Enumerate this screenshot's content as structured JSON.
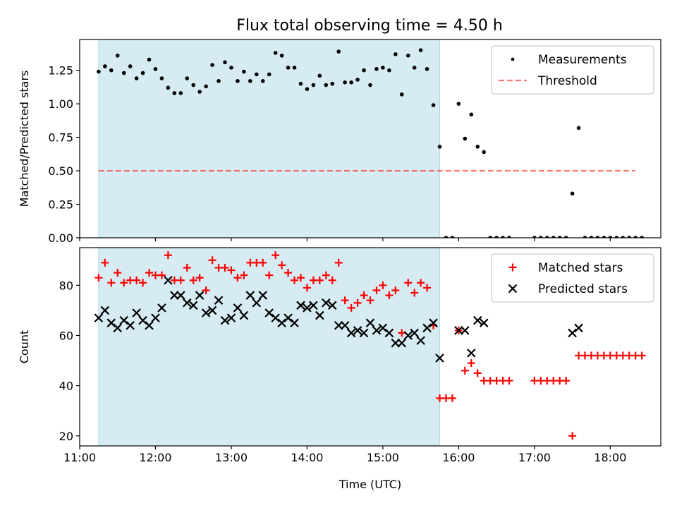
{
  "title": "Flux total observing time = 4.50 h",
  "colors": {
    "shade": "#add8e6",
    "threshold": "#ff0000",
    "measurement": "#000000",
    "matched": "#ff0000",
    "predicted": "#000000"
  },
  "chart_data": [
    {
      "type": "scatter",
      "title": "Flux total observing time = 4.50 h",
      "xlabel": "",
      "ylabel": "Matched/Predicted stars",
      "xlim": [
        "11:00",
        "18:40"
      ],
      "ylim": [
        0,
        1.48
      ],
      "xticks": [
        "11:00",
        "12:00",
        "13:00",
        "14:00",
        "15:00",
        "16:00",
        "17:00",
        "18:00"
      ],
      "show_xtick_labels": false,
      "yticks": [
        "0.00",
        "0.25",
        "0.50",
        "0.75",
        "1.00",
        "1.25"
      ],
      "ytick_values": [
        0,
        0.25,
        0.5,
        0.75,
        1.0,
        1.25
      ],
      "shaded_interval": [
        "11:15",
        "15:45"
      ],
      "legend": {
        "position": "top-right",
        "entries": [
          "Measurements",
          "Threshold"
        ]
      },
      "threshold": {
        "name": "Threshold",
        "value": 0.5,
        "x_range": [
          "11:15",
          "18:20"
        ]
      },
      "series": [
        {
          "name": "Measurements",
          "marker": "dot",
          "points": [
            [
              "11:15",
              1.24
            ],
            [
              "11:20",
              1.28
            ],
            [
              "11:25",
              1.25
            ],
            [
              "11:30",
              1.36
            ],
            [
              "11:35",
              1.23
            ],
            [
              "11:40",
              1.28
            ],
            [
              "11:45",
              1.19
            ],
            [
              "11:50",
              1.23
            ],
            [
              "11:55",
              1.33
            ],
            [
              "12:00",
              1.26
            ],
            [
              "12:05",
              1.19
            ],
            [
              "12:10",
              1.12
            ],
            [
              "12:15",
              1.08
            ],
            [
              "12:20",
              1.08
            ],
            [
              "12:25",
              1.19
            ],
            [
              "12:30",
              1.14
            ],
            [
              "12:35",
              1.09
            ],
            [
              "12:40",
              1.13
            ],
            [
              "12:45",
              1.29
            ],
            [
              "12:50",
              1.17
            ],
            [
              "12:55",
              1.31
            ],
            [
              "13:00",
              1.27
            ],
            [
              "13:05",
              1.17
            ],
            [
              "13:10",
              1.24
            ],
            [
              "13:15",
              1.17
            ],
            [
              "13:20",
              1.22
            ],
            [
              "13:25",
              1.17
            ],
            [
              "13:30",
              1.22
            ],
            [
              "13:35",
              1.38
            ],
            [
              "13:40",
              1.36
            ],
            [
              "13:45",
              1.27
            ],
            [
              "13:50",
              1.27
            ],
            [
              "13:55",
              1.15
            ],
            [
              "14:00",
              1.11
            ],
            [
              "14:05",
              1.14
            ],
            [
              "14:10",
              1.21
            ],
            [
              "14:15",
              1.14
            ],
            [
              "14:20",
              1.15
            ],
            [
              "14:25",
              1.39
            ],
            [
              "14:30",
              1.16
            ],
            [
              "14:35",
              1.16
            ],
            [
              "14:40",
              1.18
            ],
            [
              "14:45",
              1.25
            ],
            [
              "14:50",
              1.14
            ],
            [
              "14:55",
              1.26
            ],
            [
              "15:00",
              1.27
            ],
            [
              "15:05",
              1.25
            ],
            [
              "15:10",
              1.37
            ],
            [
              "15:15",
              1.07
            ],
            [
              "15:20",
              1.36
            ],
            [
              "15:25",
              1.27
            ],
            [
              "15:30",
              1.4
            ],
            [
              "15:35",
              1.26
            ],
            [
              "15:40",
              0.99
            ],
            [
              "15:45",
              0.68
            ],
            [
              "15:50",
              0.0
            ],
            [
              "15:55",
              0.0
            ],
            [
              "16:00",
              1.0
            ],
            [
              "16:05",
              0.74
            ],
            [
              "16:10",
              0.92
            ],
            [
              "16:15",
              0.68
            ],
            [
              "16:20",
              0.64
            ],
            [
              "16:25",
              0.0
            ],
            [
              "16:30",
              0.0
            ],
            [
              "16:35",
              0.0
            ],
            [
              "16:40",
              0.0
            ],
            [
              "17:00",
              0.0
            ],
            [
              "17:05",
              0.0
            ],
            [
              "17:10",
              0.0
            ],
            [
              "17:15",
              0.0
            ],
            [
              "17:20",
              0.0
            ],
            [
              "17:25",
              0.0
            ],
            [
              "17:30",
              0.33
            ],
            [
              "17:35",
              0.82
            ],
            [
              "17:40",
              0.0
            ],
            [
              "17:45",
              0.0
            ],
            [
              "17:50",
              0.0
            ],
            [
              "17:55",
              0.0
            ],
            [
              "18:00",
              0.0
            ],
            [
              "18:05",
              0.0
            ],
            [
              "18:10",
              0.0
            ],
            [
              "18:15",
              0.0
            ],
            [
              "18:20",
              0.0
            ],
            [
              "18:25",
              0.0
            ]
          ]
        }
      ]
    },
    {
      "type": "scatter",
      "title": "",
      "xlabel": "Time (UTC)",
      "ylabel": "Count",
      "xlim": [
        "11:00",
        "18:40"
      ],
      "ylim": [
        16,
        95
      ],
      "xticks": [
        "11:00",
        "12:00",
        "13:00",
        "14:00",
        "15:00",
        "16:00",
        "17:00",
        "18:00"
      ],
      "show_xtick_labels": true,
      "yticks": [
        "20",
        "40",
        "60",
        "80"
      ],
      "ytick_values": [
        20,
        40,
        60,
        80
      ],
      "shaded_interval": [
        "11:15",
        "15:45"
      ],
      "legend": {
        "position": "top-right",
        "entries": [
          "Matched stars",
          "Predicted stars"
        ]
      },
      "series": [
        {
          "name": "Matched stars",
          "marker": "plus",
          "points": [
            [
              "11:15",
              83
            ],
            [
              "11:20",
              89
            ],
            [
              "11:25",
              81
            ],
            [
              "11:30",
              85
            ],
            [
              "11:35",
              81
            ],
            [
              "11:40",
              82
            ],
            [
              "11:45",
              82
            ],
            [
              "11:50",
              81
            ],
            [
              "11:55",
              85
            ],
            [
              "12:00",
              84
            ],
            [
              "12:05",
              84
            ],
            [
              "12:10",
              92
            ],
            [
              "12:15",
              82
            ],
            [
              "12:20",
              82
            ],
            [
              "12:25",
              87
            ],
            [
              "12:30",
              82
            ],
            [
              "12:35",
              83
            ],
            [
              "12:40",
              78
            ],
            [
              "12:45",
              90
            ],
            [
              "12:50",
              87
            ],
            [
              "12:55",
              87
            ],
            [
              "13:00",
              86
            ],
            [
              "13:05",
              83
            ],
            [
              "13:10",
              84
            ],
            [
              "13:15",
              89
            ],
            [
              "13:20",
              89
            ],
            [
              "13:25",
              89
            ],
            [
              "13:30",
              84
            ],
            [
              "13:35",
              92
            ],
            [
              "13:40",
              88
            ],
            [
              "13:45",
              85
            ],
            [
              "13:50",
              82
            ],
            [
              "13:55",
              83
            ],
            [
              "14:00",
              79
            ],
            [
              "14:05",
              82
            ],
            [
              "14:10",
              82
            ],
            [
              "14:15",
              84
            ],
            [
              "14:20",
              82
            ],
            [
              "14:25",
              89
            ],
            [
              "14:30",
              74
            ],
            [
              "14:35",
              71
            ],
            [
              "14:40",
              73
            ],
            [
              "14:45",
              76
            ],
            [
              "14:50",
              74
            ],
            [
              "14:55",
              78
            ],
            [
              "15:00",
              80
            ],
            [
              "15:05",
              76
            ],
            [
              "15:10",
              78
            ],
            [
              "15:15",
              61
            ],
            [
              "15:20",
              81
            ],
            [
              "15:25",
              77
            ],
            [
              "15:30",
              81
            ],
            [
              "15:35",
              79
            ],
            [
              "15:40",
              64
            ],
            [
              "15:45",
              35
            ],
            [
              "15:50",
              35
            ],
            [
              "15:55",
              35
            ],
            [
              "16:00",
              62
            ],
            [
              "16:05",
              46
            ],
            [
              "16:10",
              49
            ],
            [
              "16:15",
              45
            ],
            [
              "16:20",
              42
            ],
            [
              "16:25",
              42
            ],
            [
              "16:30",
              42
            ],
            [
              "16:35",
              42
            ],
            [
              "16:40",
              42
            ],
            [
              "17:00",
              42
            ],
            [
              "17:05",
              42
            ],
            [
              "17:10",
              42
            ],
            [
              "17:15",
              42
            ],
            [
              "17:20",
              42
            ],
            [
              "17:25",
              42
            ],
            [
              "17:30",
              20
            ],
            [
              "17:35",
              52
            ],
            [
              "17:40",
              52
            ],
            [
              "17:45",
              52
            ],
            [
              "17:50",
              52
            ],
            [
              "17:55",
              52
            ],
            [
              "18:00",
              52
            ],
            [
              "18:05",
              52
            ],
            [
              "18:10",
              52
            ],
            [
              "18:15",
              52
            ],
            [
              "18:20",
              52
            ],
            [
              "18:25",
              52
            ]
          ]
        },
        {
          "name": "Predicted stars",
          "marker": "x",
          "points": [
            [
              "11:15",
              67
            ],
            [
              "11:20",
              70
            ],
            [
              "11:25",
              65
            ],
            [
              "11:30",
              63
            ],
            [
              "11:35",
              66
            ],
            [
              "11:40",
              64
            ],
            [
              "11:45",
              69
            ],
            [
              "11:50",
              66
            ],
            [
              "11:55",
              64
            ],
            [
              "12:00",
              67
            ],
            [
              "12:05",
              71
            ],
            [
              "12:10",
              82
            ],
            [
              "12:15",
              76
            ],
            [
              "12:20",
              76
            ],
            [
              "12:25",
              73
            ],
            [
              "12:30",
              72
            ],
            [
              "12:35",
              76
            ],
            [
              "12:40",
              69
            ],
            [
              "12:45",
              70
            ],
            [
              "12:50",
              74
            ],
            [
              "12:55",
              66
            ],
            [
              "13:00",
              67
            ],
            [
              "13:05",
              71
            ],
            [
              "13:10",
              68
            ],
            [
              "13:15",
              76
            ],
            [
              "13:20",
              73
            ],
            [
              "13:25",
              76
            ],
            [
              "13:30",
              69
            ],
            [
              "13:35",
              67
            ],
            [
              "13:40",
              65
            ],
            [
              "13:45",
              67
            ],
            [
              "13:50",
              65
            ],
            [
              "13:55",
              72
            ],
            [
              "14:00",
              71
            ],
            [
              "14:05",
              72
            ],
            [
              "14:10",
              68
            ],
            [
              "14:15",
              73
            ],
            [
              "14:20",
              72
            ],
            [
              "14:25",
              64
            ],
            [
              "14:30",
              64
            ],
            [
              "14:35",
              61
            ],
            [
              "14:40",
              62
            ],
            [
              "14:45",
              61
            ],
            [
              "14:50",
              65
            ],
            [
              "14:55",
              62
            ],
            [
              "15:00",
              63
            ],
            [
              "15:05",
              61
            ],
            [
              "15:10",
              57
            ],
            [
              "15:15",
              57
            ],
            [
              "15:20",
              60
            ],
            [
              "15:25",
              61
            ],
            [
              "15:30",
              58
            ],
            [
              "15:35",
              63
            ],
            [
              "15:40",
              65
            ],
            [
              "15:45",
              51
            ],
            [
              "16:00",
              62
            ],
            [
              "16:05",
              62
            ],
            [
              "16:10",
              53
            ],
            [
              "16:15",
              66
            ],
            [
              "16:20",
              65
            ],
            [
              "17:30",
              61
            ],
            [
              "17:35",
              63
            ]
          ]
        }
      ]
    }
  ]
}
